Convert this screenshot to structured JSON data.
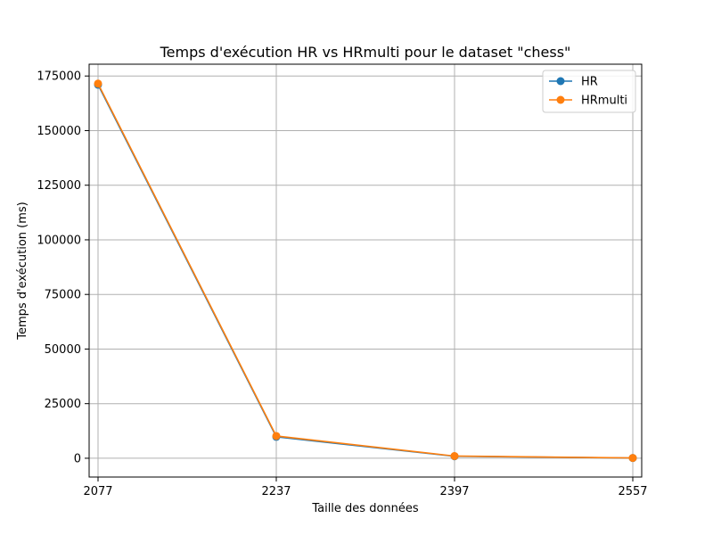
{
  "chart_data": {
    "type": "line",
    "title": "Temps d'exécution HR vs HRmulti pour le dataset \"chess\"",
    "xlabel": "Taille des données",
    "ylabel": "Temps d'exécution (ms)",
    "x": [
      2077,
      2237,
      2397,
      2557
    ],
    "xticks": [
      "2077",
      "2237",
      "2397",
      "2557"
    ],
    "yticks": [
      0,
      25000,
      50000,
      75000,
      100000,
      125000,
      150000,
      175000
    ],
    "ytick_labels": [
      "0",
      "25000",
      "50000",
      "75000",
      "100000",
      "125000",
      "150000",
      "175000"
    ],
    "ylim": [
      -8600,
      180400
    ],
    "xlim": [
      2069,
      2565
    ],
    "grid": true,
    "legend_position": "top-right",
    "series": [
      {
        "name": "HR",
        "color": "#1f77b4",
        "values": [
          171000,
          9800,
          900,
          100
        ]
      },
      {
        "name": "HRmulti",
        "color": "#ff7f0e",
        "values": [
          171500,
          10200,
          1000,
          150
        ]
      }
    ]
  }
}
